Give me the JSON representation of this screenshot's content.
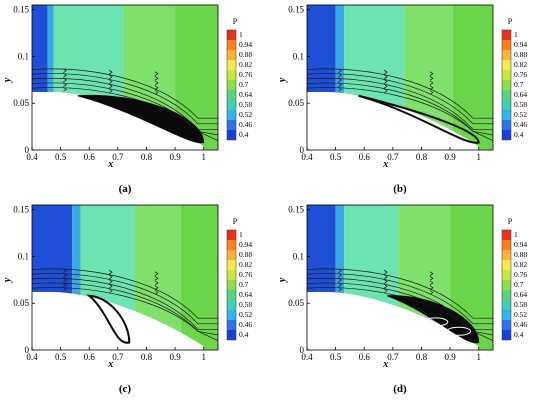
{
  "chart_data": [
    {
      "type": "heatmap",
      "panel_label": "(a)",
      "xlabel": "x",
      "ylabel": "y",
      "xlim": [
        0.4,
        1.05
      ],
      "ylim": [
        0,
        0.155
      ],
      "x_ticks": [
        "0.4",
        "0.5",
        "0.6",
        "0.7",
        "0.8",
        "0.9",
        "1"
      ],
      "x_tick_values": [
        0.4,
        0.5,
        0.6,
        0.7,
        0.8,
        0.9,
        1.0
      ],
      "y_ticks": [
        "0",
        "0.05",
        "0.1",
        "0.15"
      ],
      "y_tick_values": [
        0,
        0.05,
        0.1,
        0.15
      ],
      "colorbar": {
        "title": "P",
        "levels": [
          "1",
          "0.94",
          "0.88",
          "0.82",
          "0.76",
          "0.7",
          "0.64",
          "0.58",
          "0.52",
          "0.46",
          "0.4"
        ]
      },
      "contour_bands": [
        {
          "x_end": 0.455,
          "color": "#1e4fd6"
        },
        {
          "x_end": 0.475,
          "color": "#3aa8e6"
        },
        {
          "x_end": 0.72,
          "color": "#58e0a6"
        },
        {
          "x_end": 0.9,
          "color": "#7fe06b"
        },
        {
          "x_end": 1.05,
          "color": "#6cd64a"
        }
      ],
      "separation_bubble": {
        "x_start": 0.56,
        "x_end": 1.0,
        "y_top": 0.05,
        "thick": true,
        "two_cores": false
      }
    },
    {
      "type": "heatmap",
      "panel_label": "(b)",
      "xlabel": "x",
      "ylabel": "y",
      "xlim": [
        0.4,
        1.05
      ],
      "ylim": [
        0,
        0.155
      ],
      "x_ticks": [
        "0.4",
        "0.5",
        "0.6",
        "0.7",
        "0.8",
        "0.9",
        "1"
      ],
      "x_tick_values": [
        0.4,
        0.5,
        0.6,
        0.7,
        0.8,
        0.9,
        1.0
      ],
      "y_ticks": [
        "0",
        "0.05",
        "0.1",
        "0.15"
      ],
      "y_tick_values": [
        0,
        0.05,
        0.1,
        0.15
      ],
      "colorbar": {
        "title": "P",
        "levels": [
          "1",
          "0.94",
          "0.88",
          "0.82",
          "0.76",
          "0.7",
          "0.64",
          "0.58",
          "0.52",
          "0.46",
          "0.4"
        ]
      },
      "contour_bands": [
        {
          "x_end": 0.5,
          "color": "#1e4fd6"
        },
        {
          "x_end": 0.53,
          "color": "#3aa8e6"
        },
        {
          "x_end": 0.74,
          "color": "#58e0a6"
        },
        {
          "x_end": 0.91,
          "color": "#7fe06b"
        },
        {
          "x_end": 1.05,
          "color": "#6cd64a"
        }
      ],
      "separation_bubble": {
        "x_start": 0.58,
        "x_end": 1.0,
        "y_top": 0.03,
        "thick": false,
        "two_cores": false
      }
    },
    {
      "type": "heatmap",
      "panel_label": "(c)",
      "xlabel": "x",
      "ylabel": "y",
      "xlim": [
        0.4,
        1.05
      ],
      "ylim": [
        0,
        0.155
      ],
      "x_ticks": [
        "0.4",
        "0.5",
        "0.6",
        "0.7",
        "0.8",
        "0.9",
        "1"
      ],
      "x_tick_values": [
        0.4,
        0.5,
        0.6,
        0.7,
        0.8,
        0.9,
        1.0
      ],
      "y_ticks": [
        "0",
        "0.05",
        "0.1",
        "0.15"
      ],
      "y_tick_values": [
        0,
        0.05,
        0.1,
        0.15
      ],
      "colorbar": {
        "title": "P",
        "levels": [
          "1",
          "0.94",
          "0.88",
          "0.82",
          "0.76",
          "0.7",
          "0.64",
          "0.58",
          "0.52",
          "0.46",
          "0.4"
        ]
      },
      "contour_bands": [
        {
          "x_end": 0.54,
          "color": "#1e4fd6"
        },
        {
          "x_end": 0.57,
          "color": "#3aa8e6"
        },
        {
          "x_end": 0.76,
          "color": "#58e0a6"
        },
        {
          "x_end": 0.92,
          "color": "#7fe06b"
        },
        {
          "x_end": 1.05,
          "color": "#6cd64a"
        }
      ],
      "separation_bubble": {
        "x_start": 0.6,
        "x_end": 0.74,
        "y_top": 0.045,
        "thick": false,
        "two_cores": false
      }
    },
    {
      "type": "heatmap",
      "panel_label": "(d)",
      "xlabel": "x",
      "ylabel": "y",
      "xlim": [
        0.4,
        1.05
      ],
      "ylim": [
        0,
        0.155
      ],
      "x_ticks": [
        "0.4",
        "0.5",
        "0.6",
        "0.7",
        "0.8",
        "0.9",
        "1"
      ],
      "x_tick_values": [
        0.4,
        0.5,
        0.6,
        0.7,
        0.8,
        0.9,
        1.0
      ],
      "y_ticks": [
        "0",
        "0.05",
        "0.1",
        "0.15"
      ],
      "y_tick_values": [
        0,
        0.05,
        0.1,
        0.15
      ],
      "colorbar": {
        "title": "P",
        "levels": [
          "1",
          "0.94",
          "0.88",
          "0.82",
          "0.76",
          "0.7",
          "0.64",
          "0.58",
          "0.52",
          "0.46",
          "0.4"
        ]
      },
      "contour_bands": [
        {
          "x_end": 0.5,
          "color": "#1e4fd6"
        },
        {
          "x_end": 0.53,
          "color": "#3aa8e6"
        },
        {
          "x_end": 0.72,
          "color": "#58e0a6"
        },
        {
          "x_end": 0.9,
          "color": "#7fe06b"
        },
        {
          "x_end": 1.05,
          "color": "#6cd64a"
        }
      ],
      "separation_bubble": {
        "x_start": 0.68,
        "x_end": 1.0,
        "y_top": 0.048,
        "thick": true,
        "two_cores": true
      }
    }
  ],
  "colors": {
    "p_1": "#e8331c",
    "p_0_94": "#ff7f1f",
    "p_0_88": "#ffb23a",
    "p_0_82": "#f8e94a",
    "p_0_76": "#c8e83f",
    "p_0_7": "#8fdc4a",
    "p_0_64": "#59d47d",
    "p_0_58": "#3fd0b8",
    "p_0_52": "#33b3e8",
    "p_0_46": "#2f74e6",
    "p_0_4": "#1b3fd6",
    "streamline": "#1a1a1a",
    "bubble": "#0a0a0a"
  }
}
